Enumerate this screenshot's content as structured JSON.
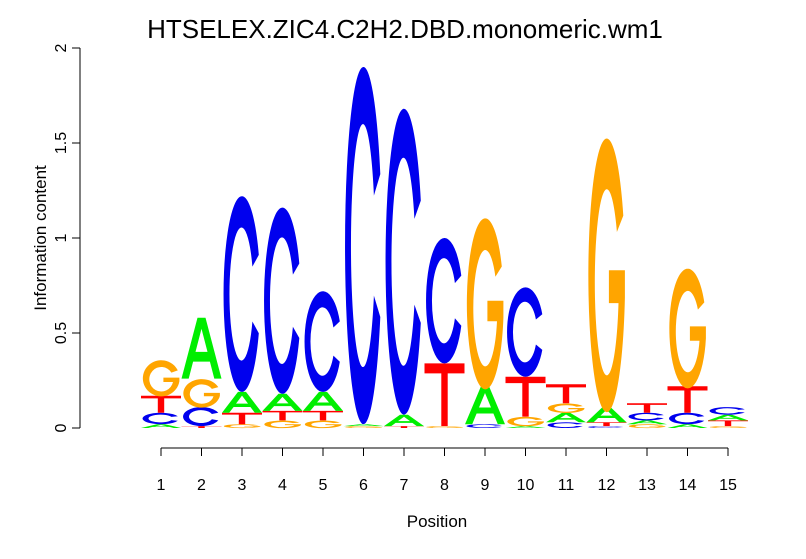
{
  "chart_data": {
    "type": "sequence-logo",
    "title": "HTSELEX.ZIC4.C2H2.DBD.monomeric.wm1",
    "xlabel": "Position",
    "ylabel": "Information content",
    "ylim": [
      0,
      2
    ],
    "yticks": [
      "0",
      "0.5",
      "1",
      "1.5",
      "2"
    ],
    "ytick_values": [
      0,
      0.5,
      1,
      1.5,
      2
    ],
    "xticks": [
      "1",
      "2",
      "3",
      "4",
      "5",
      "6",
      "7",
      "8",
      "9",
      "10",
      "11",
      "12",
      "13",
      "14",
      "15"
    ],
    "colors": {
      "A": "#00ee00",
      "C": "#0000ee",
      "G": "#ffa500",
      "T": "#ff0000"
    },
    "positions": [
      [
        [
          "A",
          0.02
        ],
        [
          "C",
          0.06
        ],
        [
          "T",
          0.09
        ],
        [
          "G",
          0.19
        ]
      ],
      [
        [
          "T",
          0.01
        ],
        [
          "C",
          0.1
        ],
        [
          "G",
          0.15
        ],
        [
          "A",
          0.32
        ]
      ],
      [
        [
          "G",
          0.02
        ],
        [
          "T",
          0.06
        ],
        [
          "A",
          0.11
        ],
        [
          "C",
          1.03
        ]
      ],
      [
        [
          "G",
          0.04
        ],
        [
          "T",
          0.05
        ],
        [
          "A",
          0.09
        ],
        [
          "C",
          0.98
        ]
      ],
      [
        [
          "G",
          0.04
        ],
        [
          "T",
          0.05
        ],
        [
          "A",
          0.1
        ],
        [
          "C",
          0.53
        ]
      ],
      [
        [
          "G",
          0.01
        ],
        [
          "A",
          0.01
        ],
        [
          "C",
          1.88
        ]
      ],
      [
        [
          "T",
          0.01
        ],
        [
          "A",
          0.06
        ],
        [
          "C",
          1.61
        ]
      ],
      [
        [
          "G",
          0.01
        ],
        [
          "T",
          0.33
        ],
        [
          "C",
          0.66
        ]
      ],
      [
        [
          "C",
          0.02
        ],
        [
          "A",
          0.2
        ],
        [
          "G",
          0.9
        ]
      ],
      [
        [
          "A",
          0.01
        ],
        [
          "G",
          0.05
        ],
        [
          "T",
          0.21
        ],
        [
          "C",
          0.47
        ]
      ],
      [
        [
          "C",
          0.03
        ],
        [
          "A",
          0.05
        ],
        [
          "G",
          0.05
        ],
        [
          "T",
          0.1
        ]
      ],
      [
        [
          "C",
          0.01
        ],
        [
          "T",
          0.02
        ],
        [
          "A",
          0.08
        ],
        [
          "G",
          1.44
        ]
      ],
      [
        [
          "G",
          0.02
        ],
        [
          "A",
          0.02
        ],
        [
          "C",
          0.04
        ],
        [
          "T",
          0.05
        ]
      ],
      [
        [
          "A",
          0.02
        ],
        [
          "C",
          0.06
        ],
        [
          "T",
          0.14
        ],
        [
          "G",
          0.63
        ]
      ],
      [
        [
          "G",
          0.01
        ],
        [
          "T",
          0.03
        ],
        [
          "A",
          0.03
        ],
        [
          "C",
          0.04
        ]
      ]
    ]
  }
}
